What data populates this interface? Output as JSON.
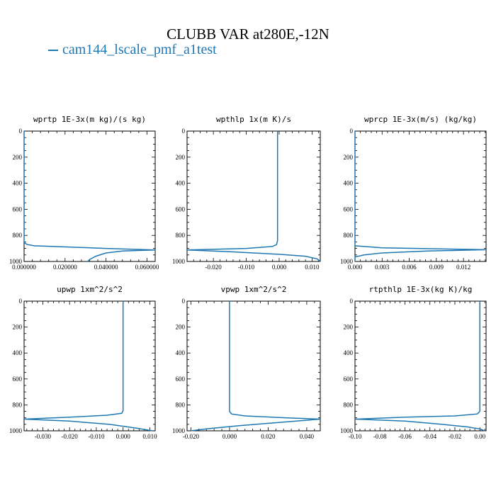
{
  "figure": {
    "title": "CLUBB VAR at280E,-12N",
    "legend": [
      {
        "name": "cam144_lscale_pmf_a1test",
        "color": "#1f77b4"
      }
    ]
  },
  "chart_data": [
    {
      "type": "line",
      "title": "wprtp  1E-3x(m kg)/(s kg)",
      "xlim": [
        0.0,
        0.064
      ],
      "ylim": [
        1000,
        0
      ],
      "xticks": [
        0.0,
        0.02,
        0.04,
        0.06
      ],
      "xtick_labels": [
        "0.000000",
        "0.020000",
        "0.040000",
        "0.060000"
      ],
      "yticks": [
        0,
        200,
        400,
        600,
        800,
        1000
      ],
      "ytick_labels": [
        "0",
        "200",
        "400",
        "600",
        "800",
        "1000"
      ],
      "series": [
        {
          "x": [
            0,
            0,
            0.0015,
            0.005,
            0.04,
            0.064,
            0.048,
            0.04,
            0.035,
            0.032,
            0.031
          ],
          "y": [
            0,
            855,
            870,
            880,
            900,
            912,
            920,
            935,
            960,
            985,
            1000
          ]
        }
      ]
    },
    {
      "type": "line",
      "title": "wpthlp  1x(m K)/s",
      "xlim": [
        -0.028,
        0.0125
      ],
      "ylim": [
        1000,
        0
      ],
      "xticks": [
        -0.02,
        -0.01,
        0.0,
        0.01
      ],
      "xtick_labels": [
        "-0.020",
        "-0.010",
        "0.000",
        "0.010"
      ],
      "yticks": [
        0,
        200,
        400,
        600,
        800,
        1000
      ],
      "ytick_labels": [
        "0",
        "200",
        "400",
        "600",
        "800",
        "1000"
      ],
      "series": [
        {
          "x": [
            -0.0005,
            -0.0005,
            -0.0008,
            -0.002,
            -0.01,
            -0.028,
            -0.015,
            0.0,
            0.008,
            0.0115,
            0.0125
          ],
          "y": [
            0,
            840,
            870,
            885,
            900,
            912,
            925,
            945,
            960,
            980,
            1000
          ]
        }
      ]
    },
    {
      "type": "line",
      "title": "wprcp  1E-3x(m/s) (kg/kg)",
      "xlim": [
        0.0,
        0.0145
      ],
      "ylim": [
        1000,
        0
      ],
      "xticks": [
        0.0,
        0.003,
        0.006,
        0.009,
        0.012
      ],
      "xtick_labels": [
        "0.000",
        "0.003",
        "0.006",
        "0.009",
        "0.012"
      ],
      "yticks": [
        0,
        200,
        400,
        600,
        800,
        1000
      ],
      "ytick_labels": [
        "0",
        "200",
        "400",
        "600",
        "800",
        "1000"
      ],
      "series": [
        {
          "x": [
            0,
            0,
            0.003,
            0.0145,
            0.008,
            0.003,
            0.001,
            0,
            0
          ],
          "y": [
            0,
            880,
            895,
            910,
            920,
            935,
            950,
            965,
            1000
          ]
        }
      ]
    },
    {
      "type": "line",
      "title": "upwp  1xm^2/s^2",
      "xlim": [
        -0.037,
        0.012
      ],
      "ylim": [
        1000,
        0
      ],
      "xticks": [
        -0.03,
        -0.02,
        -0.01,
        0.0,
        0.01
      ],
      "xtick_labels": [
        "-0.030",
        "-0.020",
        "-0.010",
        "0.000",
        "0.010"
      ],
      "yticks": [
        0,
        200,
        400,
        600,
        800,
        1000
      ],
      "ytick_labels": [
        "0",
        "200",
        "400",
        "600",
        "800",
        "1000"
      ],
      "series": [
        {
          "x": [
            0,
            0,
            -0.0005,
            -0.006,
            -0.02,
            -0.037,
            -0.02,
            -0.005,
            0.005,
            0.011
          ],
          "y": [
            0,
            845,
            865,
            880,
            895,
            910,
            925,
            950,
            980,
            1000
          ]
        }
      ]
    },
    {
      "type": "line",
      "title": "vpwp  1xm^2/s^2",
      "xlim": [
        -0.022,
        0.047
      ],
      "ylim": [
        1000,
        0
      ],
      "xticks": [
        -0.02,
        0.0,
        0.02,
        0.04
      ],
      "xtick_labels": [
        "-0.020",
        "0.000",
        "0.020",
        "0.040"
      ],
      "yticks": [
        0,
        200,
        400,
        600,
        800,
        1000
      ],
      "ytick_labels": [
        "0",
        "200",
        "400",
        "600",
        "800",
        "1000"
      ],
      "series": [
        {
          "x": [
            0,
            0,
            0.001,
            0.008,
            0.03,
            0.047,
            0.03,
            0.005,
            -0.012,
            -0.02
          ],
          "y": [
            0,
            850,
            870,
            885,
            900,
            910,
            930,
            960,
            985,
            1000
          ]
        }
      ]
    },
    {
      "type": "line",
      "title": "rtpthlp  1E-3x(kg K)/kg",
      "xlim": [
        -0.1,
        0.005
      ],
      "ylim": [
        1000,
        0
      ],
      "xticks": [
        -0.1,
        -0.08,
        -0.06,
        -0.04,
        -0.02,
        0.0
      ],
      "xtick_labels": [
        "-0.10",
        "-0.08",
        "-0.06",
        "-0.04",
        "-0.02",
        "0.00"
      ],
      "yticks": [
        0,
        200,
        400,
        600,
        800,
        1000
      ],
      "ytick_labels": [
        "0",
        "200",
        "400",
        "600",
        "800",
        "1000"
      ],
      "series": [
        {
          "x": [
            0,
            0,
            -0.002,
            -0.02,
            -0.06,
            -0.1,
            -0.06,
            -0.03,
            -0.01,
            0.0,
            0.004
          ],
          "y": [
            0,
            850,
            870,
            885,
            895,
            910,
            925,
            950,
            970,
            985,
            1000
          ]
        }
      ]
    }
  ]
}
